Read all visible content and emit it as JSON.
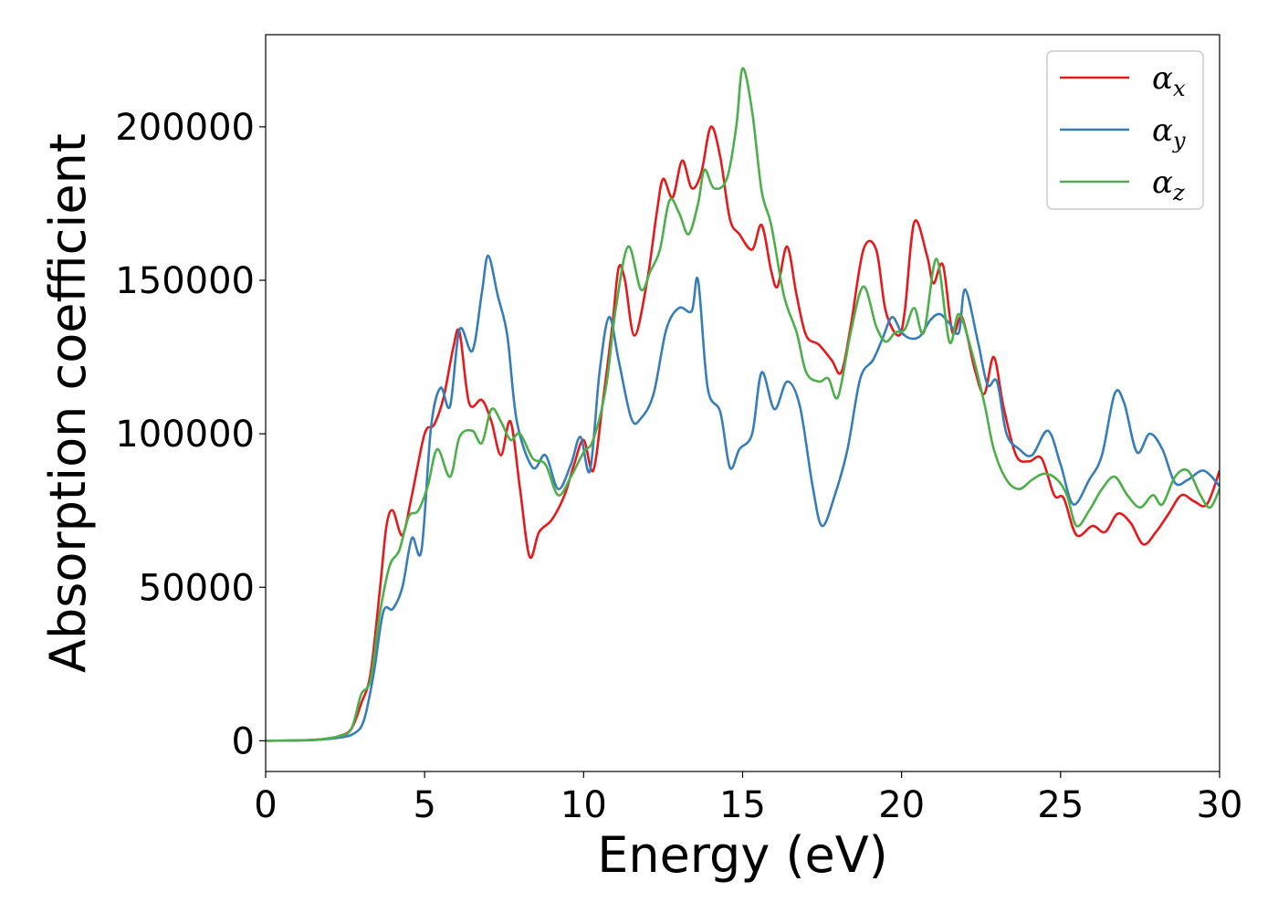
{
  "chart_data": {
    "type": "line",
    "title": "",
    "xlabel": "Energy (eV)",
    "ylabel": "Absorption coefficient",
    "xlim": [
      0,
      30
    ],
    "ylim": [
      -10000,
      230000
    ],
    "xticks": [
      0,
      5,
      10,
      15,
      20,
      25,
      30
    ],
    "yticks": [
      0,
      50000,
      100000,
      150000,
      200000
    ],
    "grid": false,
    "legend_position": "top-right",
    "series": [
      {
        "name": "α",
        "subscript": "x",
        "color": "#e41a1c",
        "points": [
          [
            0,
            0
          ],
          [
            1.5,
            300
          ],
          [
            2.3,
            1500
          ],
          [
            2.7,
            4000
          ],
          [
            3,
            12000
          ],
          [
            3.3,
            22000
          ],
          [
            3.6,
            50000
          ],
          [
            3.8,
            70000
          ],
          [
            4.0,
            75000
          ],
          [
            4.3,
            67000
          ],
          [
            4.6,
            80000
          ],
          [
            5.0,
            100000
          ],
          [
            5.3,
            103000
          ],
          [
            5.6,
            112000
          ],
          [
            5.9,
            128000
          ],
          [
            6.1,
            133000
          ],
          [
            6.4,
            110000
          ],
          [
            6.8,
            111000
          ],
          [
            7.1,
            104000
          ],
          [
            7.4,
            93000
          ],
          [
            7.7,
            104000
          ],
          [
            8.0,
            82000
          ],
          [
            8.3,
            60000
          ],
          [
            8.6,
            68000
          ],
          [
            9.0,
            72000
          ],
          [
            9.4,
            80000
          ],
          [
            9.7,
            90000
          ],
          [
            10.0,
            98000
          ],
          [
            10.3,
            88000
          ],
          [
            10.6,
            110000
          ],
          [
            10.9,
            135000
          ],
          [
            11.1,
            154000
          ],
          [
            11.3,
            150000
          ],
          [
            11.6,
            132000
          ],
          [
            12.0,
            150000
          ],
          [
            12.3,
            172000
          ],
          [
            12.5,
            183000
          ],
          [
            12.8,
            177000
          ],
          [
            13.1,
            189000
          ],
          [
            13.4,
            180000
          ],
          [
            13.7,
            185000
          ],
          [
            14.0,
            200000
          ],
          [
            14.3,
            190000
          ],
          [
            14.6,
            170000
          ],
          [
            14.9,
            165000
          ],
          [
            15.3,
            160000
          ],
          [
            15.6,
            168000
          ],
          [
            15.9,
            153000
          ],
          [
            16.1,
            148000
          ],
          [
            16.4,
            161000
          ],
          [
            16.7,
            145000
          ],
          [
            17.0,
            132000
          ],
          [
            17.4,
            129000
          ],
          [
            17.8,
            124000
          ],
          [
            18.1,
            120000
          ],
          [
            18.4,
            135000
          ],
          [
            18.8,
            160000
          ],
          [
            19.2,
            160000
          ],
          [
            19.5,
            140000
          ],
          [
            19.9,
            132000
          ],
          [
            20.1,
            140000
          ],
          [
            20.4,
            169000
          ],
          [
            20.8,
            158000
          ],
          [
            21.0,
            149000
          ],
          [
            21.3,
            155000
          ],
          [
            21.6,
            133000
          ],
          [
            21.9,
            138000
          ],
          [
            22.3,
            121000
          ],
          [
            22.6,
            113000
          ],
          [
            22.9,
            125000
          ],
          [
            23.2,
            109000
          ],
          [
            23.6,
            93000
          ],
          [
            24.0,
            91000
          ],
          [
            24.4,
            92000
          ],
          [
            24.8,
            80000
          ],
          [
            25.1,
            79000
          ],
          [
            25.5,
            67000
          ],
          [
            26.0,
            70000
          ],
          [
            26.4,
            68000
          ],
          [
            26.8,
            74000
          ],
          [
            27.2,
            71000
          ],
          [
            27.6,
            64000
          ],
          [
            28.0,
            68000
          ],
          [
            28.4,
            74000
          ],
          [
            28.8,
            80000
          ],
          [
            29.2,
            78000
          ],
          [
            29.6,
            77000
          ],
          [
            30.0,
            88000
          ]
        ]
      },
      {
        "name": "α",
        "subscript": "y",
        "color": "#377eb8",
        "points": [
          [
            0,
            0
          ],
          [
            1.5,
            250
          ],
          [
            2.3,
            1000
          ],
          [
            2.8,
            2500
          ],
          [
            3.1,
            7000
          ],
          [
            3.4,
            22000
          ],
          [
            3.7,
            42000
          ],
          [
            4.0,
            43000
          ],
          [
            4.3,
            50000
          ],
          [
            4.6,
            66000
          ],
          [
            4.9,
            62000
          ],
          [
            5.2,
            102000
          ],
          [
            5.5,
            115000
          ],
          [
            5.8,
            109000
          ],
          [
            6.1,
            134000
          ],
          [
            6.5,
            127000
          ],
          [
            6.8,
            146000
          ],
          [
            7.0,
            158000
          ],
          [
            7.3,
            145000
          ],
          [
            7.6,
            132000
          ],
          [
            7.9,
            104000
          ],
          [
            8.4,
            89000
          ],
          [
            8.8,
            93000
          ],
          [
            9.2,
            82000
          ],
          [
            9.6,
            90000
          ],
          [
            9.9,
            99000
          ],
          [
            10.2,
            88000
          ],
          [
            10.5,
            120000
          ],
          [
            10.8,
            138000
          ],
          [
            11.1,
            124000
          ],
          [
            11.5,
            105000
          ],
          [
            11.8,
            105000
          ],
          [
            12.2,
            113000
          ],
          [
            12.6,
            134000
          ],
          [
            13.0,
            141000
          ],
          [
            13.4,
            140000
          ],
          [
            13.6,
            150000
          ],
          [
            13.9,
            115000
          ],
          [
            14.3,
            107000
          ],
          [
            14.6,
            89000
          ],
          [
            14.9,
            95000
          ],
          [
            15.3,
            100000
          ],
          [
            15.6,
            120000
          ],
          [
            16.0,
            108000
          ],
          [
            16.4,
            117000
          ],
          [
            16.8,
            109000
          ],
          [
            17.2,
            83000
          ],
          [
            17.5,
            70000
          ],
          [
            17.9,
            80000
          ],
          [
            18.3,
            95000
          ],
          [
            18.7,
            118000
          ],
          [
            19.1,
            124000
          ],
          [
            19.4,
            131000
          ],
          [
            19.7,
            138000
          ],
          [
            20.0,
            133000
          ],
          [
            20.3,
            131000
          ],
          [
            20.6,
            132000
          ],
          [
            20.9,
            137000
          ],
          [
            21.2,
            139000
          ],
          [
            21.5,
            136000
          ],
          [
            21.8,
            133000
          ],
          [
            22.0,
            147000
          ],
          [
            22.4,
            130000
          ],
          [
            22.7,
            116000
          ],
          [
            23.0,
            117000
          ],
          [
            23.3,
            100000
          ],
          [
            23.7,
            95000
          ],
          [
            24.1,
            93000
          ],
          [
            24.6,
            101000
          ],
          [
            25.0,
            90000
          ],
          [
            25.4,
            77000
          ],
          [
            25.9,
            85000
          ],
          [
            26.3,
            93000
          ],
          [
            26.7,
            113000
          ],
          [
            27.0,
            110000
          ],
          [
            27.4,
            94000
          ],
          [
            27.8,
            100000
          ],
          [
            28.2,
            95000
          ],
          [
            28.6,
            84000
          ],
          [
            29.0,
            85000
          ],
          [
            29.5,
            88000
          ],
          [
            30.0,
            83000
          ]
        ]
      },
      {
        "name": "α",
        "subscript": "z",
        "color": "#4daf4a",
        "points": [
          [
            0,
            0
          ],
          [
            1.5,
            300
          ],
          [
            2.3,
            1500
          ],
          [
            2.7,
            4000
          ],
          [
            3.0,
            15000
          ],
          [
            3.3,
            20000
          ],
          [
            3.6,
            42000
          ],
          [
            3.9,
            57000
          ],
          [
            4.2,
            62000
          ],
          [
            4.5,
            73000
          ],
          [
            4.8,
            75000
          ],
          [
            5.1,
            83000
          ],
          [
            5.4,
            95000
          ],
          [
            5.8,
            86000
          ],
          [
            6.1,
            99000
          ],
          [
            6.5,
            101000
          ],
          [
            6.8,
            97000
          ],
          [
            7.1,
            108000
          ],
          [
            7.4,
            104000
          ],
          [
            7.7,
            98000
          ],
          [
            8.0,
            100000
          ],
          [
            8.4,
            92000
          ],
          [
            8.8,
            90000
          ],
          [
            9.2,
            80000
          ],
          [
            9.6,
            86000
          ],
          [
            10.0,
            94000
          ],
          [
            10.3,
            98000
          ],
          [
            10.7,
            115000
          ],
          [
            11.0,
            140000
          ],
          [
            11.4,
            161000
          ],
          [
            11.8,
            147000
          ],
          [
            12.1,
            153000
          ],
          [
            12.4,
            160000
          ],
          [
            12.7,
            176000
          ],
          [
            13.0,
            172000
          ],
          [
            13.3,
            165000
          ],
          [
            13.6,
            175000
          ],
          [
            13.8,
            186000
          ],
          [
            14.1,
            180000
          ],
          [
            14.5,
            183000
          ],
          [
            14.8,
            200000
          ],
          [
            15.0,
            219000
          ],
          [
            15.3,
            205000
          ],
          [
            15.6,
            179000
          ],
          [
            15.9,
            168000
          ],
          [
            16.3,
            145000
          ],
          [
            16.7,
            133000
          ],
          [
            17.0,
            120000
          ],
          [
            17.4,
            117000
          ],
          [
            17.7,
            118000
          ],
          [
            18.0,
            112000
          ],
          [
            18.4,
            133000
          ],
          [
            18.8,
            148000
          ],
          [
            19.2,
            135000
          ],
          [
            19.5,
            130000
          ],
          [
            19.8,
            133000
          ],
          [
            20.1,
            134000
          ],
          [
            20.4,
            141000
          ],
          [
            20.7,
            133000
          ],
          [
            21.1,
            157000
          ],
          [
            21.5,
            130000
          ],
          [
            21.8,
            139000
          ],
          [
            22.2,
            127000
          ],
          [
            22.6,
            110000
          ],
          [
            22.9,
            95000
          ],
          [
            23.3,
            85000
          ],
          [
            23.7,
            82000
          ],
          [
            24.1,
            85000
          ],
          [
            24.5,
            87000
          ],
          [
            24.9,
            85000
          ],
          [
            25.2,
            80000
          ],
          [
            25.5,
            70000
          ],
          [
            25.9,
            75000
          ],
          [
            26.3,
            82000
          ],
          [
            26.7,
            86000
          ],
          [
            27.1,
            80000
          ],
          [
            27.5,
            76000
          ],
          [
            27.9,
            80000
          ],
          [
            28.2,
            77000
          ],
          [
            28.6,
            86000
          ],
          [
            29.0,
            88000
          ],
          [
            29.4,
            80000
          ],
          [
            29.7,
            76000
          ],
          [
            30.0,
            82000
          ]
        ]
      }
    ]
  }
}
